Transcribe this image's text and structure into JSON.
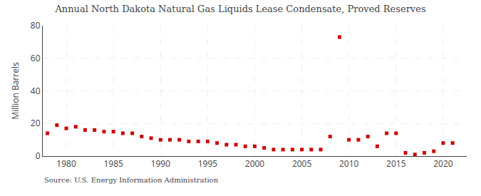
{
  "chart_data": {
    "type": "scatter",
    "title": "Annual North Dakota Natural Gas Liquids Lease Condensate, Proved Reserves",
    "ylabel": "Million Barrels",
    "annotations": [
      "Source: U.S. Energy Information Administration"
    ],
    "x": [
      1978,
      1979,
      1980,
      1981,
      1982,
      1983,
      1984,
      1985,
      1986,
      1987,
      1988,
      1989,
      1990,
      1991,
      1992,
      1993,
      1994,
      1995,
      1996,
      1997,
      1998,
      1999,
      2000,
      2001,
      2002,
      2003,
      2004,
      2005,
      2006,
      2007,
      2008,
      2009,
      2010,
      2011,
      2012,
      2013,
      2014,
      2015,
      2016,
      2017,
      2018,
      2019,
      2020,
      2021
    ],
    "values": [
      14,
      19,
      17,
      18,
      16,
      16,
      15,
      15,
      14,
      14,
      12,
      11,
      10,
      10,
      10,
      9,
      9,
      9,
      8,
      7,
      7,
      6,
      6,
      5,
      4,
      4,
      4,
      4,
      4,
      4,
      12,
      73,
      10,
      10,
      12,
      6,
      14,
      14,
      2,
      1,
      2,
      3,
      8,
      8
    ],
    "color": "#cc0000",
    "marker": "square",
    "xlim": [
      1977.5,
      2022.5
    ],
    "xticks": [
      1980,
      1985,
      1990,
      1995,
      2000,
      2005,
      2010,
      2015,
      2020
    ],
    "ylim": [
      0,
      80
    ],
    "yticks": [
      0,
      20,
      40,
      60,
      80
    ],
    "grid": true
  }
}
